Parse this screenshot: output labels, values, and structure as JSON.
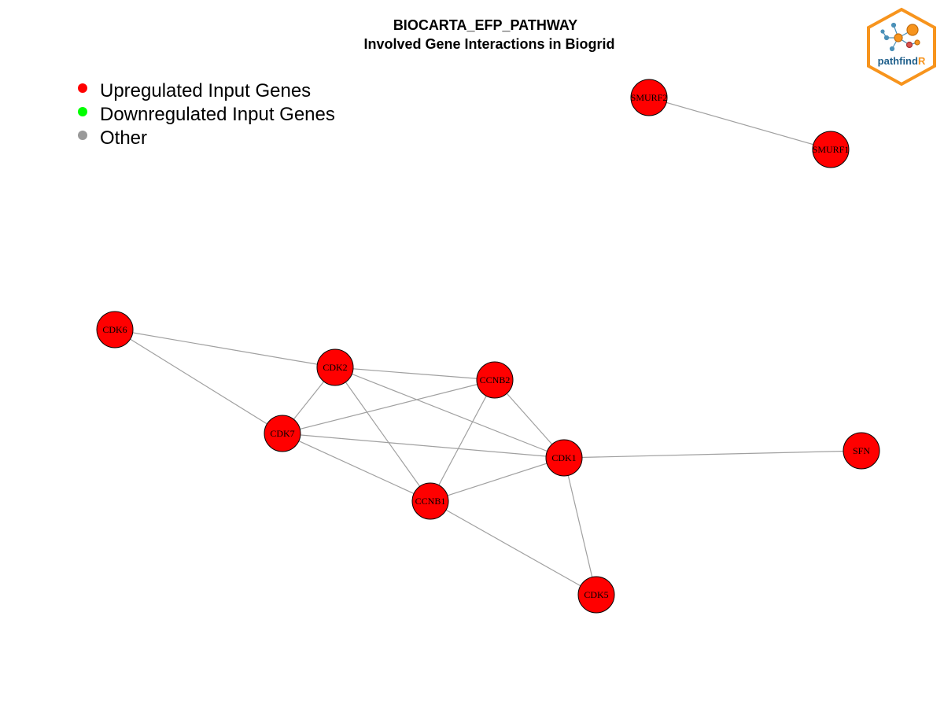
{
  "title": {
    "line1": "BIOCARTA_EFP_PATHWAY",
    "line2": "Involved Gene Interactions in Biogrid"
  },
  "legend": [
    {
      "label": "Upregulated Input Genes",
      "color": "#ff0000"
    },
    {
      "label": "Downregulated Input Genes",
      "color": "#00ff00"
    },
    {
      "label": "Other",
      "color": "#999999"
    }
  ],
  "logo": {
    "text_main": "pathfind",
    "text_accent": "R",
    "frame_color": "#f7941d",
    "text_color": "#1f5f8b"
  },
  "graph": {
    "node_color": "#ff0000",
    "edge_color": "#a0a0a0",
    "nodes": [
      {
        "id": "SMURF2",
        "label": "SMURF2"
      },
      {
        "id": "SMURF1",
        "label": "SMURF1"
      },
      {
        "id": "CDK6",
        "label": "CDK6"
      },
      {
        "id": "CDK2",
        "label": "CDK2"
      },
      {
        "id": "CCNB2",
        "label": "CCNB2"
      },
      {
        "id": "CDK7",
        "label": "CDK7"
      },
      {
        "id": "CDK1",
        "label": "CDK1"
      },
      {
        "id": "SFN",
        "label": "SFN"
      },
      {
        "id": "CCNB1",
        "label": "CCNB1"
      },
      {
        "id": "CDK5",
        "label": "CDK5"
      }
    ],
    "edges": [
      [
        "SMURF2",
        "SMURF1"
      ],
      [
        "CDK6",
        "CDK2"
      ],
      [
        "CDK6",
        "CDK7"
      ],
      [
        "CDK2",
        "CCNB2"
      ],
      [
        "CDK2",
        "CDK7"
      ],
      [
        "CDK2",
        "CDK1"
      ],
      [
        "CDK2",
        "CCNB1"
      ],
      [
        "CCNB2",
        "CDK7"
      ],
      [
        "CCNB2",
        "CDK1"
      ],
      [
        "CCNB2",
        "CCNB1"
      ],
      [
        "CDK7",
        "CDK1"
      ],
      [
        "CDK7",
        "CCNB1"
      ],
      [
        "CDK1",
        "CCNB1"
      ],
      [
        "CDK1",
        "SFN"
      ],
      [
        "CDK1",
        "CDK5"
      ],
      [
        "CCNB1",
        "CDK5"
      ]
    ]
  }
}
